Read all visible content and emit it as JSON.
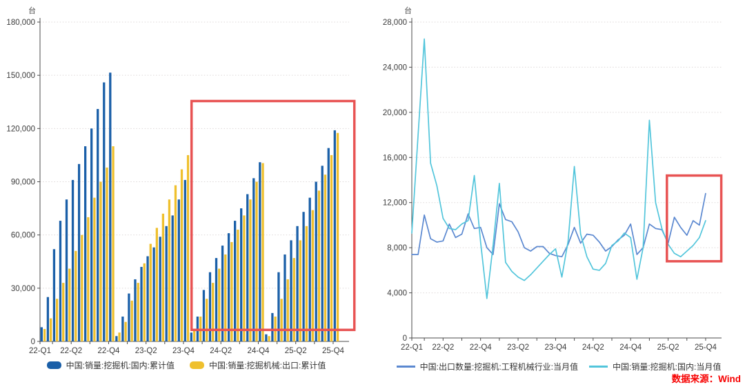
{
  "page": {
    "background": "#ffffff",
    "source": {
      "label": "数据来源：Wind",
      "color": "#f70000"
    }
  },
  "colors": {
    "bar_domestic": "#1a5fa8",
    "bar_export": "#efc02e",
    "line_export": "#5b88d0",
    "line_domestic": "#52c5db",
    "annotation_red": "#e85353",
    "axis": "#4a4a4a",
    "gridline": "#ddd7d7"
  },
  "chart_data": [
    {
      "type": "bar",
      "unit_label": "台",
      "ylim": [
        0,
        180000
      ],
      "yticks": [
        0,
        30000,
        60000,
        90000,
        120000,
        150000,
        180000
      ],
      "grid": "dotted-horizontal",
      "legend_position": "bottom",
      "x_tick_labels": [
        {
          "month": 0,
          "label": "22-Q1"
        },
        {
          "month": 5,
          "label": "22-Q2"
        },
        {
          "month": 11,
          "label": "22-Q4"
        },
        {
          "month": 17,
          "label": "23-Q2"
        },
        {
          "month": 23,
          "label": "23-Q4"
        },
        {
          "month": 29,
          "label": "24-Q2"
        },
        {
          "month": 35,
          "label": "24-Q4"
        },
        {
          "month": 41,
          "label": "25-Q2"
        },
        {
          "month": 47,
          "label": "25-Q4"
        }
      ],
      "x_minor_ticks_months": [
        0,
        2,
        5,
        8,
        11,
        14,
        17,
        20,
        23,
        26,
        29,
        32,
        35,
        38,
        41,
        44,
        47
      ],
      "categories": [
        "2022-01",
        "2022-02",
        "2022-03",
        "2022-04",
        "2022-05",
        "2022-06",
        "2022-07",
        "2022-08",
        "2022-09",
        "2022-10",
        "2022-11",
        "2022-12",
        "2023-01",
        "2023-02",
        "2023-03",
        "2023-04",
        "2023-05",
        "2023-06",
        "2023-07",
        "2023-08",
        "2023-09",
        "2023-10",
        "2023-11",
        "2023-12",
        "2024-01",
        "2024-02",
        "2024-03",
        "2024-04",
        "2024-05",
        "2024-06",
        "2024-07",
        "2024-08",
        "2024-09",
        "2024-10",
        "2024-11",
        "2024-12",
        "2025-01",
        "2025-02",
        "2025-03",
        "2025-04",
        "2025-05",
        "2025-06",
        "2025-07",
        "2025-08",
        "2025-09",
        "2025-10",
        "2025-11",
        "2025-12"
      ],
      "series": [
        {
          "name": "中国:销量:挖掘机:国内:累计值",
          "color": "#1a5fa8",
          "values": [
            8000,
            25000,
            52000,
            68000,
            80000,
            91000,
            100000,
            110000,
            120000,
            131000,
            146000,
            151500,
            3000,
            14000,
            27000,
            35000,
            42000,
            48000,
            53000,
            59000,
            65000,
            71000,
            80000,
            91000,
            5000,
            14000,
            29000,
            39000,
            47000,
            54000,
            61000,
            68000,
            75000,
            83000,
            92000,
            101000,
            4000,
            16000,
            39000,
            49000,
            57000,
            65000,
            73000,
            81000,
            90000,
            99000,
            109000,
            119000
          ]
        },
        {
          "name": "中国:销量:挖掘机械:出口:累计值",
          "color": "#efc02e",
          "values": [
            7000,
            13000,
            24000,
            33000,
            41000,
            51000,
            60000,
            70000,
            81000,
            90000,
            98000,
            110000,
            5000,
            11000,
            23000,
            33000,
            44000,
            55000,
            64000,
            72000,
            80000,
            88000,
            97000,
            105000,
            7000,
            14000,
            24000,
            33000,
            41000,
            49000,
            56000,
            63000,
            71000,
            80000,
            90000,
            100500,
            3000,
            14000,
            24000,
            35000,
            47000,
            57000,
            65000,
            74000,
            85000,
            94000,
            105000,
            117500
          ]
        }
      ],
      "annotation_box": {
        "month_from": 24.3,
        "month_to": 50.4,
        "value_min": 6500,
        "value_max": 135500,
        "color": "#e85353"
      }
    },
    {
      "type": "line",
      "unit_label": "台",
      "ylim": [
        0,
        28000
      ],
      "yticks": [
        0,
        4000,
        8000,
        12000,
        16000,
        20000,
        24000,
        28000
      ],
      "grid": "dotted-horizontal",
      "legend_position": "bottom",
      "x_tick_labels": [
        {
          "month": 0,
          "label": "22-Q1"
        },
        {
          "month": 5,
          "label": "22-Q2"
        },
        {
          "month": 11,
          "label": "22-Q4"
        },
        {
          "month": 17,
          "label": "23-Q2"
        },
        {
          "month": 23,
          "label": "23-Q4"
        },
        {
          "month": 29,
          "label": "24-Q2"
        },
        {
          "month": 35,
          "label": "24-Q4"
        },
        {
          "month": 41,
          "label": "25-Q2"
        },
        {
          "month": 47,
          "label": "25-Q4"
        }
      ],
      "x_minor_ticks_months": [
        0,
        2,
        5,
        8,
        11,
        14,
        17,
        20,
        23,
        26,
        29,
        32,
        35,
        38,
        41,
        44,
        47
      ],
      "categories": [
        "2022-01",
        "2022-02",
        "2022-03",
        "2022-04",
        "2022-05",
        "2022-06",
        "2022-07",
        "2022-08",
        "2022-09",
        "2022-10",
        "2022-11",
        "2022-12",
        "2023-01",
        "2023-02",
        "2023-03",
        "2023-04",
        "2023-05",
        "2023-06",
        "2023-07",
        "2023-08",
        "2023-09",
        "2023-10",
        "2023-11",
        "2023-12",
        "2024-01",
        "2024-02",
        "2024-03",
        "2024-04",
        "2024-05",
        "2024-06",
        "2024-07",
        "2024-08",
        "2024-09",
        "2024-10",
        "2024-11",
        "2024-12",
        "2025-01",
        "2025-02",
        "2025-03",
        "2025-04",
        "2025-05",
        "2025-06",
        "2025-07",
        "2025-08",
        "2025-09",
        "2025-10",
        "2025-11",
        "2025-12"
      ],
      "series": [
        {
          "name": "中国:出口数量:挖掘机:工程机械行业:当月值",
          "color": "#5b88d0",
          "values": [
            7400,
            7400,
            10900,
            8800,
            8500,
            8600,
            10100,
            8900,
            9200,
            11000,
            9700,
            9800,
            8000,
            7400,
            11900,
            10500,
            10300,
            9400,
            8000,
            7700,
            8100,
            8100,
            7500,
            7300,
            7200,
            8300,
            9800,
            8400,
            9200,
            9100,
            8500,
            7700,
            8100,
            8700,
            9100,
            10100,
            7400,
            8000,
            10100,
            9700,
            9600,
            8400,
            10700,
            9800,
            9100,
            10400,
            10000,
            12800
          ]
        },
        {
          "name": "中国:销量:挖掘机:国内:当月值",
          "color": "#52c5db",
          "values": [
            9300,
            18000,
            26500,
            15500,
            13500,
            10600,
            9700,
            9600,
            10100,
            10400,
            14400,
            8500,
            3500,
            8200,
            13700,
            6700,
            5900,
            5400,
            5100,
            5600,
            6200,
            6800,
            7400,
            7900,
            5400,
            8600,
            15200,
            9200,
            7200,
            6100,
            6000,
            6600,
            8200,
            8600,
            9300,
            8900,
            5200,
            8000,
            19300,
            12000,
            9700,
            8300,
            7500,
            7200,
            7700,
            8200,
            8900,
            10400
          ]
        }
      ],
      "annotation_box": {
        "month_from": 40.8,
        "month_to": 49.5,
        "value_min": 6800,
        "value_max": 14400,
        "color": "#e85353"
      }
    }
  ]
}
